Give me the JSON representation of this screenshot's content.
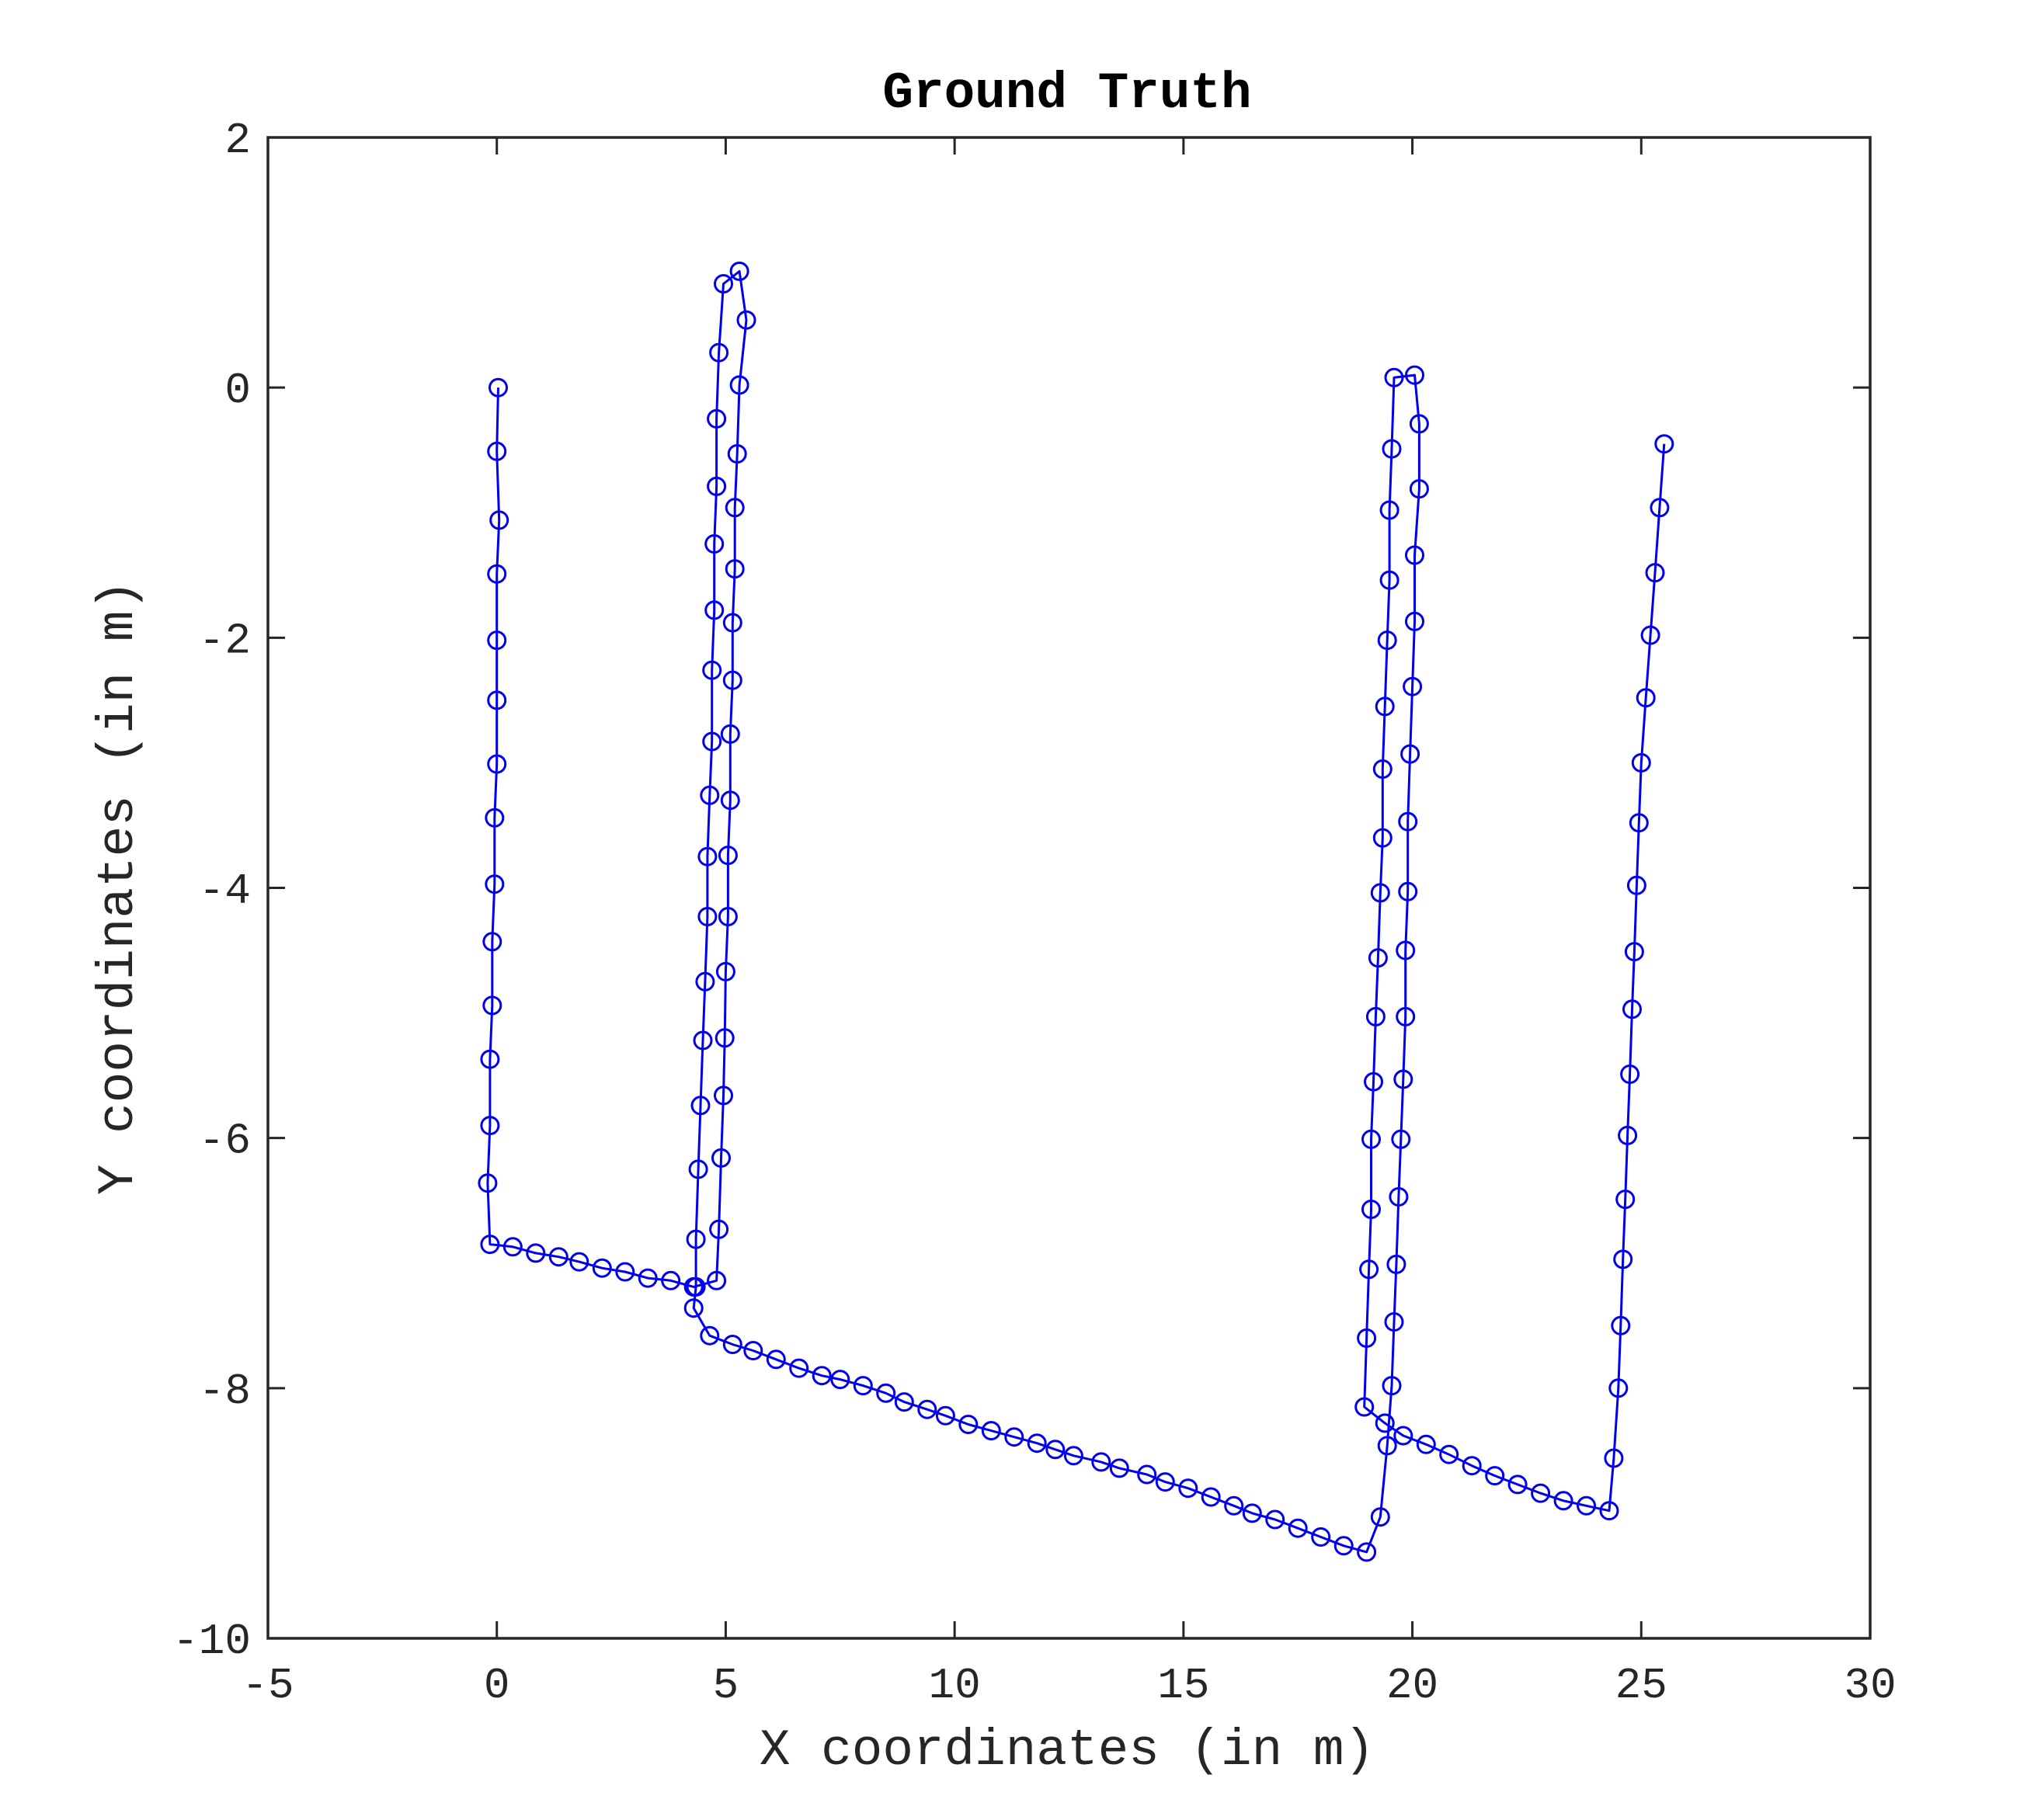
{
  "chart_data": {
    "type": "line",
    "title": "Ground Truth",
    "xlabel": "X coordinates (in m)",
    "ylabel": "Y coordinates (in m)",
    "xlim": [
      -5,
      30
    ],
    "ylim": [
      -10,
      2
    ],
    "xticks": [
      -5,
      0,
      5,
      10,
      15,
      20,
      25,
      30
    ],
    "xtick_labels": [
      "-5",
      "0",
      "5",
      "10",
      "15",
      "20",
      "25",
      "30"
    ],
    "yticks": [
      2,
      0,
      -2,
      -4,
      -6,
      -8,
      -10
    ],
    "ytick_labels": [
      "2",
      "0",
      "-2",
      "-4",
      "-6",
      "-8",
      "-10"
    ],
    "grid": false,
    "legend": false,
    "marker": "circle",
    "colors": {
      "series": "#0000ee",
      "axes": "#262626",
      "background": "#ffffff"
    },
    "series": [
      {
        "points": [
          [
            0.03,
            0.0
          ],
          [
            0.0,
            -0.51
          ],
          [
            0.05,
            -1.06
          ],
          [
            0.0,
            -1.49
          ],
          [
            0.0,
            -2.02
          ],
          [
            0.0,
            -2.5
          ],
          [
            0.0,
            -3.01
          ],
          [
            -0.05,
            -3.44
          ],
          [
            -0.05,
            -3.97
          ],
          [
            -0.1,
            -4.43
          ],
          [
            -0.1,
            -4.94
          ],
          [
            -0.15,
            -5.37
          ],
          [
            -0.15,
            -5.9
          ],
          [
            -0.2,
            -6.36
          ],
          [
            -0.15,
            -6.85
          ],
          [
            0.35,
            -6.87
          ],
          [
            0.85,
            -6.92
          ],
          [
            1.35,
            -6.95
          ],
          [
            1.8,
            -6.99
          ],
          [
            2.3,
            -7.04
          ],
          [
            2.8,
            -7.07
          ],
          [
            3.3,
            -7.12
          ],
          [
            3.8,
            -7.14
          ],
          [
            4.3,
            -7.19
          ],
          [
            4.8,
            -7.14
          ],
          [
            4.85,
            -6.73
          ],
          [
            4.9,
            -6.16
          ],
          [
            4.95,
            -5.66
          ],
          [
            4.98,
            -5.2
          ],
          [
            5.0,
            -4.67
          ],
          [
            5.05,
            -4.23
          ],
          [
            5.05,
            -3.74
          ],
          [
            5.1,
            -3.3
          ],
          [
            5.1,
            -2.77
          ],
          [
            5.15,
            -2.34
          ],
          [
            5.15,
            -1.88
          ],
          [
            5.2,
            -1.45
          ],
          [
            5.2,
            -0.96
          ],
          [
            5.25,
            -0.53
          ],
          [
            5.3,
            0.02
          ],
          [
            5.45,
            0.54
          ],
          [
            5.3,
            0.93
          ],
          [
            4.95,
            0.83
          ],
          [
            4.85,
            0.28
          ],
          [
            4.8,
            -0.25
          ],
          [
            4.8,
            -0.79
          ],
          [
            4.75,
            -1.25
          ],
          [
            4.75,
            -1.78
          ],
          [
            4.7,
            -2.26
          ],
          [
            4.7,
            -2.83
          ],
          [
            4.65,
            -3.26
          ],
          [
            4.6,
            -3.75
          ],
          [
            4.6,
            -4.23
          ],
          [
            4.55,
            -4.75
          ],
          [
            4.5,
            -5.22
          ],
          [
            4.45,
            -5.74
          ],
          [
            4.4,
            -6.25
          ],
          [
            4.35,
            -6.81
          ],
          [
            4.35,
            -7.19
          ],
          [
            4.3,
            -7.36
          ],
          [
            4.65,
            -7.58
          ],
          [
            5.15,
            -7.65
          ],
          [
            5.6,
            -7.7
          ],
          [
            6.1,
            -7.77
          ],
          [
            6.6,
            -7.84
          ],
          [
            7.1,
            -7.9
          ],
          [
            7.5,
            -7.93
          ],
          [
            8.0,
            -7.98
          ],
          [
            8.5,
            -8.04
          ],
          [
            8.9,
            -8.11
          ],
          [
            9.4,
            -8.17
          ],
          [
            9.8,
            -8.22
          ],
          [
            10.3,
            -8.29
          ],
          [
            10.8,
            -8.34
          ],
          [
            11.3,
            -8.39
          ],
          [
            11.8,
            -8.44
          ],
          [
            12.2,
            -8.49
          ],
          [
            12.6,
            -8.54
          ],
          [
            13.2,
            -8.59
          ],
          [
            13.6,
            -8.64
          ],
          [
            14.2,
            -8.69
          ],
          [
            14.6,
            -8.75
          ],
          [
            15.1,
            -8.8
          ],
          [
            15.6,
            -8.87
          ],
          [
            16.1,
            -8.94
          ],
          [
            16.5,
            -9.0
          ],
          [
            17.0,
            -9.05
          ],
          [
            17.5,
            -9.12
          ],
          [
            18.0,
            -9.19
          ],
          [
            18.5,
            -9.26
          ],
          [
            19.0,
            -9.31
          ],
          [
            19.3,
            -9.03
          ],
          [
            19.45,
            -8.46
          ],
          [
            19.55,
            -7.98
          ],
          [
            19.6,
            -7.47
          ],
          [
            19.65,
            -7.01
          ],
          [
            19.7,
            -6.47
          ],
          [
            19.75,
            -6.01
          ],
          [
            19.8,
            -5.53
          ],
          [
            19.85,
            -5.03
          ],
          [
            19.85,
            -4.5
          ],
          [
            19.9,
            -4.03
          ],
          [
            19.9,
            -3.47
          ],
          [
            19.95,
            -2.93
          ],
          [
            20.0,
            -2.39
          ],
          [
            20.05,
            -1.87
          ],
          [
            20.05,
            -1.34
          ],
          [
            20.15,
            -0.81
          ],
          [
            20.15,
            -0.29
          ],
          [
            20.05,
            0.1
          ],
          [
            19.6,
            0.08
          ],
          [
            19.55,
            -0.49
          ],
          [
            19.5,
            -0.98
          ],
          [
            19.5,
            -1.54
          ],
          [
            19.45,
            -2.02
          ],
          [
            19.4,
            -2.55
          ],
          [
            19.35,
            -3.05
          ],
          [
            19.35,
            -3.6
          ],
          [
            19.3,
            -4.04
          ],
          [
            19.25,
            -4.56
          ],
          [
            19.2,
            -5.03
          ],
          [
            19.15,
            -5.55
          ],
          [
            19.1,
            -6.01
          ],
          [
            19.1,
            -6.57
          ],
          [
            19.05,
            -7.05
          ],
          [
            19.0,
            -7.6
          ],
          [
            18.95,
            -8.15
          ],
          [
            19.4,
            -8.28
          ],
          [
            19.8,
            -8.38
          ],
          [
            20.3,
            -8.45
          ],
          [
            20.8,
            -8.53
          ],
          [
            21.3,
            -8.62
          ],
          [
            21.8,
            -8.7
          ],
          [
            22.3,
            -8.77
          ],
          [
            22.8,
            -8.84
          ],
          [
            23.3,
            -8.9
          ],
          [
            23.8,
            -8.94
          ],
          [
            24.3,
            -8.98
          ],
          [
            24.4,
            -8.56
          ],
          [
            24.5,
            -8.0
          ],
          [
            24.55,
            -7.5
          ],
          [
            24.6,
            -6.97
          ],
          [
            24.65,
            -6.49
          ],
          [
            24.7,
            -5.98
          ],
          [
            24.75,
            -5.49
          ],
          [
            24.8,
            -4.97
          ],
          [
            24.85,
            -4.51
          ],
          [
            24.9,
            -3.98
          ],
          [
            24.95,
            -3.48
          ],
          [
            25.0,
            -3.0
          ],
          [
            25.1,
            -2.48
          ],
          [
            25.2,
            -1.98
          ],
          [
            25.3,
            -1.48
          ],
          [
            25.4,
            -0.96
          ],
          [
            25.5,
            -0.45
          ]
        ]
      }
    ]
  }
}
